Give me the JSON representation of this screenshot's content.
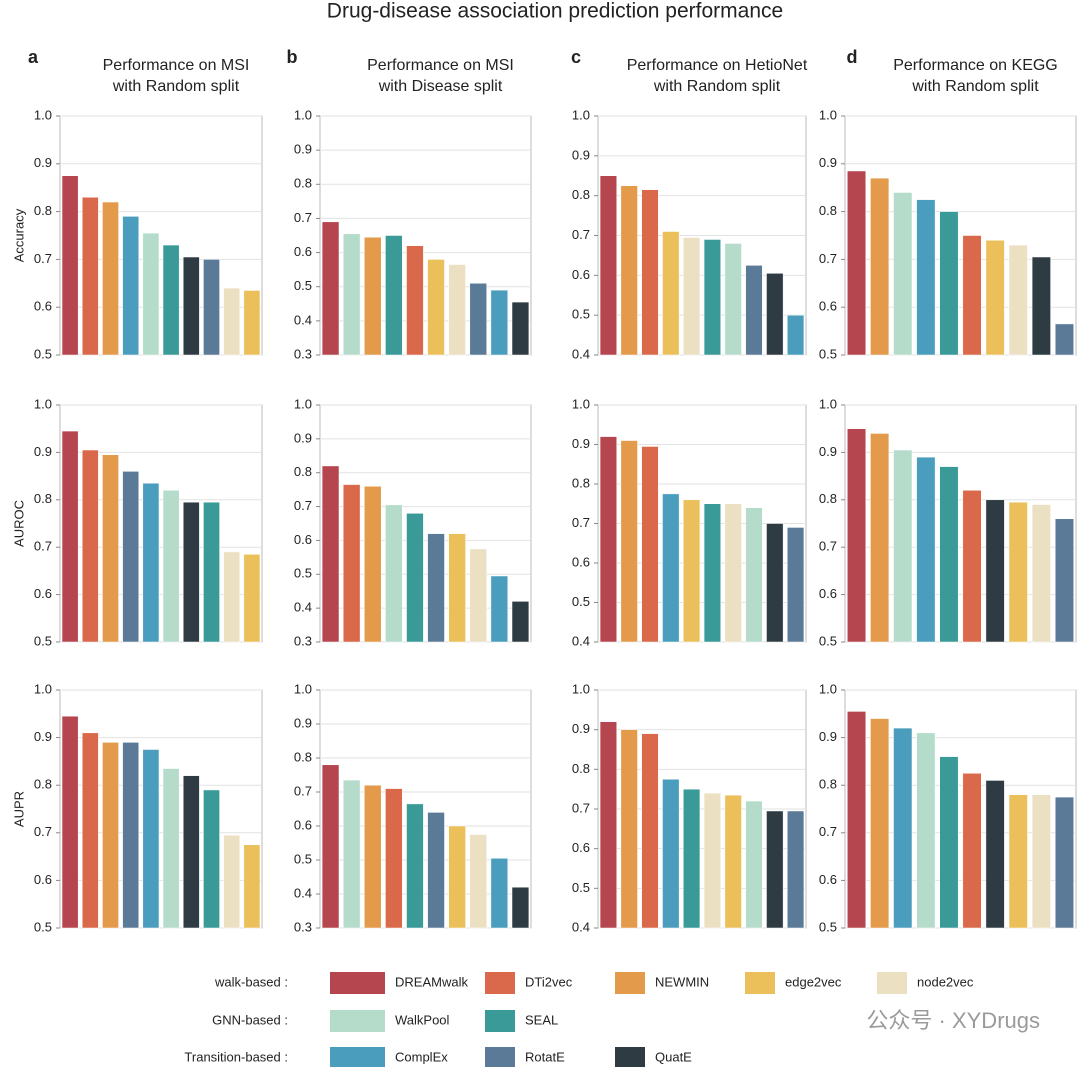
{
  "title": "Drug-disease association prediction performance",
  "chart_data": [
    {
      "type": "bar",
      "panel": "a",
      "title": [
        "Performance on MSI",
        "with Random split"
      ],
      "ylabel": "Accuracy",
      "categories": [
        "DREAMwalk",
        "DTi2vec",
        "NEWMIN",
        "ComplEx",
        "WalkPool",
        "SEAL",
        "QuatE",
        "RotatE",
        "node2vec",
        "edge2vec"
      ],
      "values": [
        0.875,
        0.83,
        0.82,
        0.79,
        0.755,
        0.73,
        0.705,
        0.7,
        0.64,
        0.635
      ],
      "ylim": [
        0.5,
        1
      ],
      "yticks": [
        0.5,
        0.6,
        0.7,
        0.8,
        0.9,
        {
          "value": 1,
          "label": "1.0"
        }
      ],
      "grid": true
    },
    {
      "type": "bar",
      "panel": "b",
      "title": [
        "Performance on MSI",
        "with Disease split"
      ],
      "categories": [
        "DREAMwalk",
        "WalkPool",
        "NEWMIN",
        "SEAL",
        "DTi2vec",
        "edge2vec",
        "node2vec",
        "RotatE",
        "ComplEx",
        "QuatE"
      ],
      "values": [
        0.69,
        0.655,
        0.645,
        0.65,
        0.62,
        0.58,
        0.565,
        0.51,
        0.49,
        0.455
      ],
      "ylim": [
        0.3,
        1
      ],
      "yticks": [
        0.3,
        0.4,
        0.5,
        0.6,
        0.7,
        0.8,
        0.9,
        {
          "value": 1,
          "label": "1.0"
        }
      ],
      "grid": true
    },
    {
      "type": "bar",
      "panel": "c",
      "title": [
        "Performance on HetioNet",
        "with Random split"
      ],
      "categories": [
        "DREAMwalk",
        "NEWMIN",
        "DTi2vec",
        "edge2vec",
        "node2vec",
        "SEAL",
        "WalkPool",
        "RotatE",
        "QuatE",
        "ComplEx"
      ],
      "values": [
        0.85,
        0.825,
        0.815,
        0.71,
        0.695,
        0.69,
        0.68,
        0.625,
        0.605,
        0.5
      ],
      "ylim": [
        0.4,
        1
      ],
      "yticks": [
        0.4,
        0.5,
        0.6,
        0.7,
        0.8,
        0.9,
        {
          "value": 1,
          "label": "1.0"
        }
      ],
      "grid": true
    },
    {
      "type": "bar",
      "panel": "d",
      "title": [
        "Performance on KEGG",
        "with Random split"
      ],
      "categories": [
        "DREAMwalk",
        "NEWMIN",
        "WalkPool",
        "ComplEx",
        "SEAL",
        "DTi2vec",
        "edge2vec",
        "node2vec",
        "QuatE",
        "RotatE"
      ],
      "values": [
        0.885,
        0.87,
        0.84,
        0.825,
        0.8,
        0.75,
        0.74,
        0.73,
        0.705,
        0.565
      ],
      "ylim": [
        0.5,
        1
      ],
      "yticks": [
        0.5,
        0.6,
        0.7,
        0.8,
        0.9,
        {
          "value": 1,
          "label": "1.0"
        }
      ],
      "grid": true
    },
    {
      "type": "bar",
      "ylabel": "AUROC",
      "categories": [
        "DREAMwalk",
        "DTi2vec",
        "NEWMIN",
        "RotatE",
        "ComplEx",
        "WalkPool",
        "QuatE",
        "SEAL",
        "node2vec",
        "edge2vec"
      ],
      "values": [
        0.945,
        0.905,
        0.895,
        0.86,
        0.835,
        0.82,
        0.795,
        0.795,
        0.69,
        0.685
      ],
      "ylim": [
        0.5,
        1
      ],
      "yticks": [
        0.5,
        0.6,
        0.7,
        0.8,
        0.9,
        {
          "value": 1,
          "label": "1.0"
        }
      ],
      "grid": true
    },
    {
      "type": "bar",
      "categories": [
        "DREAMwalk",
        "DTi2vec",
        "NEWMIN",
        "WalkPool",
        "SEAL",
        "RotatE",
        "edge2vec",
        "node2vec",
        "ComplEx",
        "QuatE"
      ],
      "values": [
        0.82,
        0.765,
        0.76,
        0.705,
        0.68,
        0.62,
        0.62,
        0.575,
        0.495,
        0.42
      ],
      "ylim": [
        0.3,
        1
      ],
      "yticks": [
        0.3,
        0.4,
        0.5,
        0.6,
        0.7,
        0.8,
        0.9,
        {
          "value": 1,
          "label": "1.0"
        }
      ],
      "grid": true
    },
    {
      "type": "bar",
      "categories": [
        "DREAMwalk",
        "NEWMIN",
        "DTi2vec",
        "ComplEx",
        "edge2vec",
        "SEAL",
        "node2vec",
        "WalkPool",
        "QuatE",
        "RotatE"
      ],
      "values": [
        0.92,
        0.91,
        0.895,
        0.775,
        0.76,
        0.75,
        0.75,
        0.74,
        0.7,
        0.69
      ],
      "ylim": [
        0.4,
        1
      ],
      "yticks": [
        0.4,
        0.5,
        0.6,
        0.7,
        0.8,
        0.9,
        {
          "value": 1,
          "label": "1.0"
        }
      ],
      "grid": true
    },
    {
      "type": "bar",
      "categories": [
        "DREAMwalk",
        "NEWMIN",
        "WalkPool",
        "ComplEx",
        "SEAL",
        "DTi2vec",
        "QuatE",
        "edge2vec",
        "node2vec",
        "RotatE"
      ],
      "values": [
        0.95,
        0.94,
        0.905,
        0.89,
        0.87,
        0.82,
        0.8,
        0.795,
        0.79,
        0.76
      ],
      "ylim": [
        0.5,
        1
      ],
      "yticks": [
        0.5,
        0.6,
        0.7,
        0.8,
        0.9,
        {
          "value": 1,
          "label": "1.0"
        }
      ],
      "grid": true
    },
    {
      "type": "bar",
      "ylabel": "AUPR",
      "categories": [
        "DREAMwalk",
        "DTi2vec",
        "NEWMIN",
        "RotatE",
        "ComplEx",
        "WalkPool",
        "QuatE",
        "SEAL",
        "node2vec",
        "edge2vec"
      ],
      "values": [
        0.945,
        0.91,
        0.89,
        0.89,
        0.875,
        0.835,
        0.82,
        0.79,
        0.695,
        0.675
      ],
      "ylim": [
        0.5,
        1
      ],
      "yticks": [
        0.5,
        0.6,
        0.7,
        0.8,
        0.9,
        {
          "value": 1,
          "label": "1.0"
        }
      ],
      "grid": true
    },
    {
      "type": "bar",
      "categories": [
        "DREAMwalk",
        "WalkPool",
        "NEWMIN",
        "DTi2vec",
        "SEAL",
        "RotatE",
        "edge2vec",
        "node2vec",
        "ComplEx",
        "QuatE"
      ],
      "values": [
        0.78,
        0.735,
        0.72,
        0.71,
        0.665,
        0.64,
        0.6,
        0.575,
        0.505,
        0.42
      ],
      "ylim": [
        0.3,
        1
      ],
      "yticks": [
        0.3,
        0.4,
        0.5,
        0.6,
        0.7,
        0.8,
        0.9,
        {
          "value": 1,
          "label": "1.0"
        }
      ],
      "grid": true
    },
    {
      "type": "bar",
      "categories": [
        "DREAMwalk",
        "NEWMIN",
        "DTi2vec",
        "ComplEx",
        "SEAL",
        "node2vec",
        "edge2vec",
        "WalkPool",
        "QuatE",
        "RotatE"
      ],
      "values": [
        0.92,
        0.9,
        0.89,
        0.775,
        0.75,
        0.74,
        0.735,
        0.72,
        0.695,
        0.695
      ],
      "ylim": [
        0.4,
        1
      ],
      "yticks": [
        0.4,
        0.5,
        0.6,
        0.7,
        0.8,
        0.9,
        {
          "value": 1,
          "label": "1.0"
        }
      ],
      "grid": true
    },
    {
      "type": "bar",
      "categories": [
        "DREAMwalk",
        "NEWMIN",
        "ComplEx",
        "WalkPool",
        "SEAL",
        "DTi2vec",
        "QuatE",
        "edge2vec",
        "node2vec",
        "RotatE"
      ],
      "values": [
        0.955,
        0.94,
        0.92,
        0.91,
        0.86,
        0.825,
        0.81,
        0.78,
        0.78,
        0.775
      ],
      "ylim": [
        0.5,
        1
      ],
      "yticks": [
        0.5,
        0.6,
        0.7,
        0.8,
        0.9,
        {
          "value": 1,
          "label": "1.0"
        }
      ],
      "grid": true
    }
  ],
  "legend": {
    "groups": [
      {
        "label": "walk-based :",
        "items": [
          {
            "name": "DREAMwalk",
            "color": "#b5464f"
          },
          {
            "name": "DTi2vec",
            "color": "#d9694a"
          },
          {
            "name": "NEWMIN",
            "color": "#e39a4a"
          },
          {
            "name": "edge2vec",
            "color": "#ebc05a"
          },
          {
            "name": "node2vec",
            "color": "#ece0c3"
          }
        ]
      },
      {
        "label": "GNN-based :",
        "items": [
          {
            "name": "WalkPool",
            "color": "#b5dccb"
          },
          {
            "name": "SEAL",
            "color": "#3a9a98"
          }
        ]
      },
      {
        "label": "Transition-based :",
        "items": [
          {
            "name": "ComplEx",
            "color": "#4a9dbc"
          },
          {
            "name": "RotatE",
            "color": "#5b7a98"
          },
          {
            "name": "QuatE",
            "color": "#2e3b42"
          }
        ]
      }
    ]
  },
  "watermark": "公众号 · XYDrugs"
}
